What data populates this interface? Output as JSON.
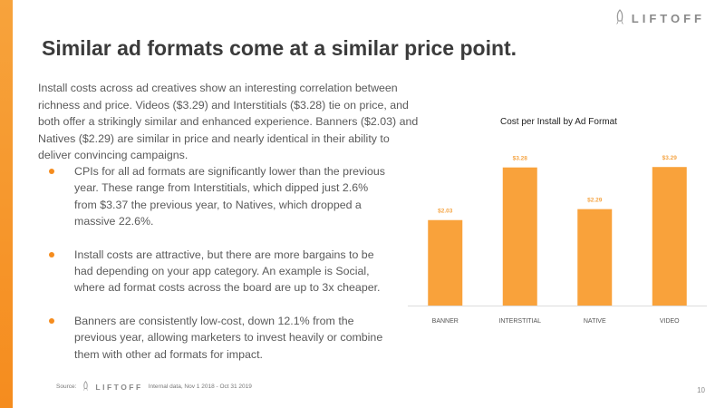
{
  "brand": {
    "name": "LIFTOFF",
    "accent": "#f59a30"
  },
  "title": "Similar ad formats come at a similar price point.",
  "intro": "Install costs across ad creatives show an interesting correlation between richness and price. Videos ($3.29) and Interstitials ($3.28) tie on price, and both offer a strikingly similar and enhanced experience. Banners ($2.03) and Natives ($2.29) are similar in price and nearly identical in their ability to deliver convincing campaigns.",
  "bullets": [
    "CPIs for all ad formats are significantly lower than the previous year. These range from Interstitials, which dipped just 2.6% from $3.37 the previous year, to Natives, which dropped a massive 22.6%.",
    "Install costs are attractive, but there are more bargains to be had depending on your app category. An example is Social, where ad format costs across the board are up to 3x cheaper.",
    "Banners are consistently low-cost, down 12.1% from the previous year, allowing marketers to invest heavily or combine them with other ad formats for impact."
  ],
  "chart_data": {
    "type": "bar",
    "title": "Cost per Install by Ad Format",
    "categories": [
      "BANNER",
      "INTERSTITIAL",
      "NATIVE",
      "VIDEO"
    ],
    "values": [
      2.03,
      3.28,
      2.29,
      3.29
    ],
    "value_labels": [
      "$2.03",
      "$3.28",
      "$2.29",
      "$3.29"
    ],
    "ylim": [
      0,
      3.5
    ],
    "xlabel": "",
    "ylabel": "",
    "bar_color": "#f9a23b",
    "label_color": "#f5a545"
  },
  "footer": {
    "source_label": "Source:",
    "logo_text": "LIFTOFF",
    "note": "Internal data, Nov 1 2018 - Oct 31 2019"
  },
  "page_number": "10"
}
